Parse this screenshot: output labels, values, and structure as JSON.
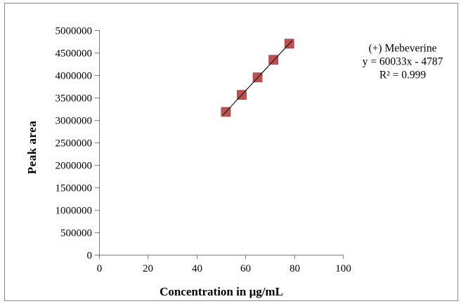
{
  "chart_data": {
    "type": "scatter",
    "title": "",
    "xlabel": "Concentration in μg/mL",
    "ylabel": "Peak area",
    "series": [
      {
        "name": "(+) Mebeverine",
        "x": [
          52,
          58.5,
          65,
          71.5,
          78
        ],
        "y": [
          3180000,
          3560000,
          3950000,
          4340000,
          4700000
        ]
      }
    ],
    "xlim": [
      0,
      100
    ],
    "ylim": [
      0,
      5000000
    ],
    "x_ticks": [
      0,
      20,
      40,
      60,
      80,
      100
    ],
    "y_ticks": [
      0,
      500000,
      1000000,
      1500000,
      2000000,
      2500000,
      3000000,
      3500000,
      4000000,
      4500000,
      5000000
    ],
    "grid": false,
    "legend_position": "none",
    "trendline": {
      "slope": 60033,
      "intercept": -4787,
      "r_squared": 0.999
    },
    "annotation": {
      "lines": [
        "(+) Mebeverine",
        "y = 60033x - 4787",
        "R² = 0.999"
      ]
    },
    "colors": {
      "marker_fill": "#C0504D",
      "marker_edge": "#A0413F",
      "trendline": "#1a1a1a",
      "axis": "#808080",
      "frame_border": "#8a8a8a",
      "background": "#ffffff",
      "text": "#000000"
    }
  }
}
